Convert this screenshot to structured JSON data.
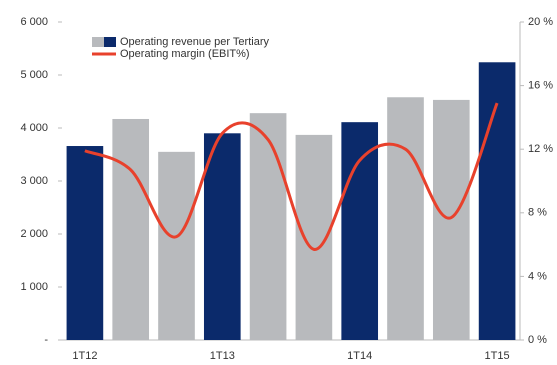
{
  "chart_data": {
    "type": "bar-line",
    "categories": [
      "1T12",
      null,
      null,
      "1T13",
      null,
      null,
      "1T14",
      null,
      null,
      "1T15"
    ],
    "series": [
      {
        "name": "Operating revenue per Tertiary",
        "type": "bar",
        "colors": [
          "#0b2a6b",
          "#b8babd",
          "#b8babd",
          "#0b2a6b",
          "#b8babd",
          "#b8babd",
          "#0b2a6b",
          "#b8babd",
          "#b8babd",
          "#0b2a6b"
        ],
        "values": [
          3660,
          4170,
          3550,
          3900,
          4280,
          3870,
          4110,
          4580,
          4530,
          5240
        ]
      },
      {
        "name": "Operating margin (EBIT%)",
        "type": "line",
        "axis": "y2",
        "color": "#e8412c",
        "values": [
          11.9,
          10.7,
          6.5,
          13.0,
          12.6,
          5.7,
          11.3,
          12.0,
          7.7,
          14.9
        ]
      }
    ],
    "ylim": [
      0,
      6000
    ],
    "yticks": [
      {
        "value": 0,
        "label": "-"
      },
      {
        "value": 1000,
        "label": "1 000"
      },
      {
        "value": 2000,
        "label": "2 000"
      },
      {
        "value": 3000,
        "label": "3 000"
      },
      {
        "value": 4000,
        "label": "4 000"
      },
      {
        "value": 5000,
        "label": "5 000"
      },
      {
        "value": 6000,
        "label": "6 000"
      }
    ],
    "y2lim": [
      0,
      20
    ],
    "y2ticks": [
      {
        "value": 0,
        "label": "0 %"
      },
      {
        "value": 4,
        "label": "4 %"
      },
      {
        "value": 8,
        "label": "8 %"
      },
      {
        "value": 12,
        "label": "12 %"
      },
      {
        "value": 16,
        "label": "16 %"
      },
      {
        "value": 20,
        "label": "20 %"
      }
    ]
  }
}
